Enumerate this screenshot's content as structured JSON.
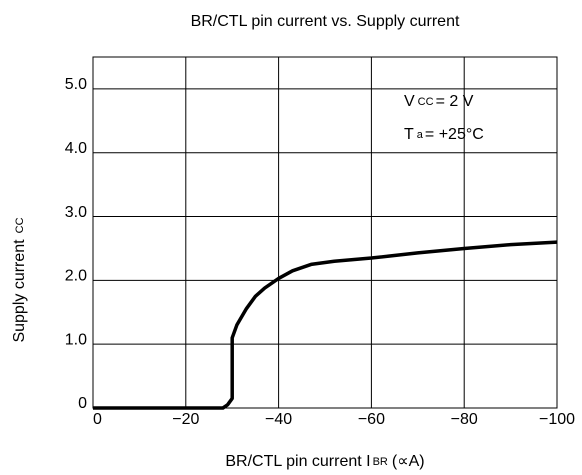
{
  "chart_data": {
    "type": "line",
    "title": "BR/CTL pin current vs. Supply current",
    "xlabel": "BR/CTL pin current I",
    "xlabel_sub": "BR",
    "xlabel_unit": "(∝A)",
    "ylabel": "Supply current",
    "ylabel_sub": "CC",
    "annotations": [
      {
        "main": "V",
        "sub": "CC",
        "rest": "= 2 V"
      },
      {
        "main": "T",
        "sub": "a",
        "rest": "= +25°C"
      }
    ],
    "x": [
      0,
      -28,
      -29,
      -30,
      -30,
      -31,
      -33,
      -35,
      -37,
      -40,
      -43,
      -47,
      -52,
      -60,
      -70,
      -80,
      -90,
      -100
    ],
    "series": [
      {
        "name": "Supply current",
        "color": "#000000",
        "values": [
          0,
          0,
          0.05,
          0.15,
          1.1,
          1.3,
          1.55,
          1.75,
          1.88,
          2.03,
          2.15,
          2.25,
          2.3,
          2.35,
          2.43,
          2.5,
          2.56,
          2.6
        ]
      }
    ],
    "xlim": [
      0,
      -100
    ],
    "xticks": [
      0,
      {
        "value": -20,
        "label": "−20"
      },
      {
        "value": -40,
        "label": "−40"
      },
      {
        "value": -60,
        "label": "−60"
      },
      {
        "value": -80,
        "label": "−80"
      },
      {
        "value": -100,
        "label": "−100"
      }
    ],
    "ylim": [
      0,
      5.5
    ],
    "yticks": [
      0,
      {
        "value": 1,
        "label": "1.0"
      },
      {
        "value": 2,
        "label": "2.0"
      },
      {
        "value": 3,
        "label": "3.0"
      },
      {
        "value": 4,
        "label": "4.0"
      },
      {
        "value": 5,
        "label": "5.0"
      }
    ],
    "grid": true
  }
}
